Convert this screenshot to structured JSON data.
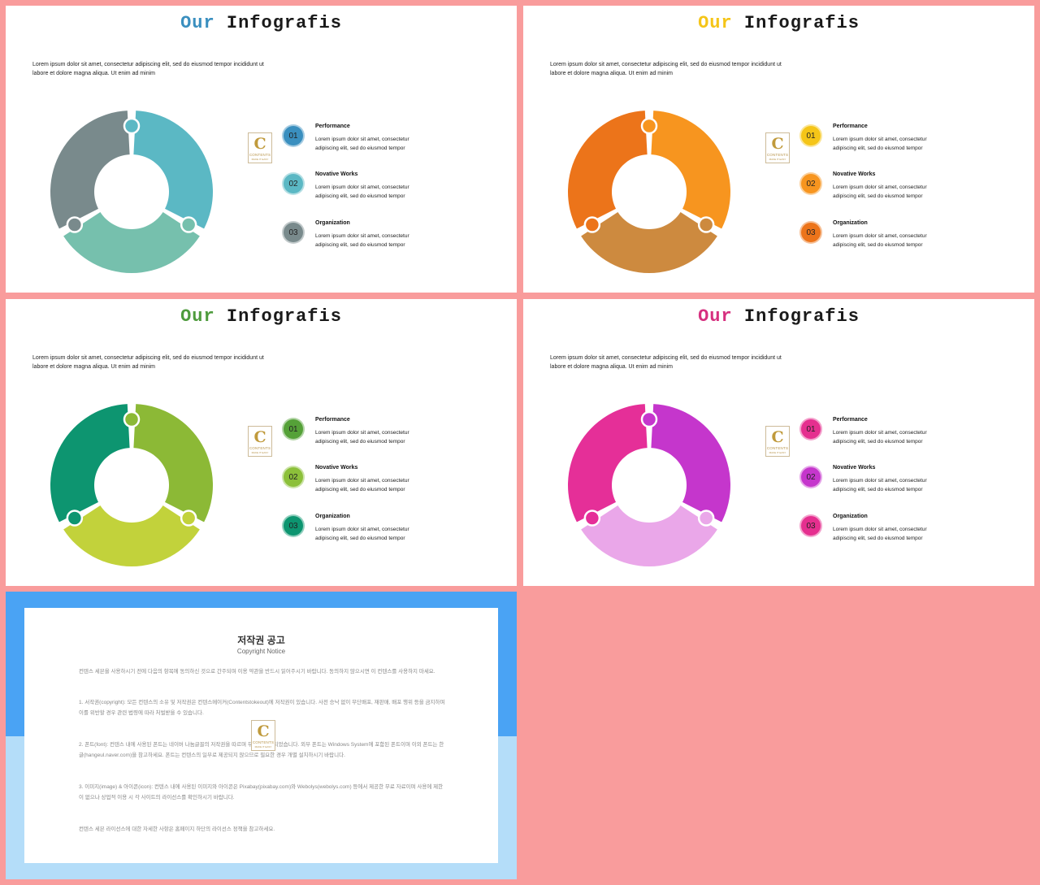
{
  "slides": [
    {
      "title_accent": "Our",
      "title_rest": " Infografis",
      "accent_color": "#3a8fbf",
      "intro": "Lorem ipsum dolor sit amet, consectetur adipiscing elit, sed do eiusmod tempor incididunt ut labore et dolore magna aliqua. Ut enim ad minim",
      "segment_colors": [
        "#5bb8c4",
        "#76c0ad",
        "#798a8c"
      ],
      "items": [
        {
          "num": "01",
          "name": "Performance",
          "desc": "Lorem ipsum dolor sit amet, consectetur adipiscing elit, sed do eiusmod tempor",
          "color": "#3a8fbf"
        },
        {
          "num": "02",
          "name": "Novative Works",
          "desc": "Lorem ipsum dolor sit amet, consectetur adipiscing elit, sed do eiusmod tempor",
          "color": "#5bb8c4"
        },
        {
          "num": "03",
          "name": "Organization",
          "desc": "Lorem ipsum dolor sit amet, consectetur adipiscing elit, sed do eiusmod tempor",
          "color": "#798a8c"
        }
      ]
    },
    {
      "title_accent": "Our",
      "title_rest": " Infografis",
      "accent_color": "#f5c518",
      "intro": "Lorem ipsum dolor sit amet, consectetur adipiscing elit, sed do eiusmod tempor incididunt ut labore et dolore magna aliqua. Ut enim ad minim",
      "segment_colors": [
        "#f7951f",
        "#cd8a3f",
        "#ec741a"
      ],
      "items": [
        {
          "num": "01",
          "name": "Performance",
          "desc": "Lorem ipsum dolor sit amet, consectetur adipiscing elit, sed do eiusmod tempor",
          "color": "#f5c518"
        },
        {
          "num": "02",
          "name": "Novative Works",
          "desc": "Lorem ipsum dolor sit amet, consectetur adipiscing elit, sed do eiusmod tempor",
          "color": "#f7951f"
        },
        {
          "num": "03",
          "name": "Organization",
          "desc": "Lorem ipsum dolor sit amet, consectetur adipiscing elit, sed do eiusmod tempor",
          "color": "#ec741a"
        }
      ]
    },
    {
      "title_accent": "Our",
      "title_rest": " Infografis",
      "accent_color": "#4e9b3d",
      "intro": "Lorem ipsum dolor sit amet, consectetur adipiscing elit, sed do eiusmod tempor incididunt ut labore et dolore magna aliqua. Ut enim ad minim",
      "segment_colors": [
        "#8cb936",
        "#c2d23b",
        "#0d9570"
      ],
      "items": [
        {
          "num": "01",
          "name": "Performance",
          "desc": "Lorem ipsum dolor sit amet, consectetur adipiscing elit, sed do eiusmod tempor",
          "color": "#55a138"
        },
        {
          "num": "02",
          "name": "Novative Works",
          "desc": "Lorem ipsum dolor sit amet, consectetur adipiscing elit, sed do eiusmod tempor",
          "color": "#8cc03a"
        },
        {
          "num": "03",
          "name": "Organization",
          "desc": "Lorem ipsum dolor sit amet, consectetur adipiscing elit, sed do eiusmod tempor",
          "color": "#0d9570"
        }
      ]
    },
    {
      "title_accent": "Our",
      "title_rest": " Infografis",
      "accent_color": "#d6307f",
      "intro": "Lorem ipsum dolor sit amet, consectetur adipiscing elit, sed do eiusmod tempor incididunt ut labore et dolore magna aliqua. Ut enim ad minim",
      "segment_colors": [
        "#c536cc",
        "#eaa7e9",
        "#e52f98"
      ],
      "items": [
        {
          "num": "01",
          "name": "Performance",
          "desc": "Lorem ipsum dolor sit amet, consectetur adipiscing elit, sed do eiusmod tempor",
          "color": "#e52f8f"
        },
        {
          "num": "02",
          "name": "Novative Works",
          "desc": "Lorem ipsum dolor sit amet, consectetur adipiscing elit, sed do eiusmod tempor",
          "color": "#c536cc"
        },
        {
          "num": "03",
          "name": "Organization",
          "desc": "Lorem ipsum dolor sit amet, consectetur adipiscing elit, sed do eiusmod tempor",
          "color": "#e52f8f"
        }
      ]
    }
  ],
  "logo": {
    "letter": "C",
    "text": "CONTENTS",
    "sub": "MAKE IT EASY"
  },
  "copyright": {
    "title": "저작권 공고",
    "subtitle": "Copyright Notice",
    "paragraphs": [
      "컨텐스 세븐을 사용하시기 전에 다음의 항목에 동의하신 것으로 간주되며 이용 약관을 반드시 읽어주시기 바랍니다. 동의하지 않으시면 이 컨텐스를 사용하지 마세요.",
      "1. 서작권(copyright): 모든 컨텐스의 소유 및 저작권은 컨텐스메이커(Contentstokeout)에 저작권이 있습니다. 사전 승낙 없이 무단배포, 재판매, 배포 행위 등을 금지하며 이를 위반할 경우 관련 법령에 따라 처벌받을 수 있습니다.",
      "2. 폰트(font): 컨텐스 내에 사용된 폰트는 네이버 나눔글꼴의 저작권을 따르며 무료로 배포되었습니다. 외부 폰트는 Windows System에 포함된 폰트이며 이외 폰트는 한글(hangeul.naver.com)을 참고하세요. 폰트는 컨텐스의 일부로 제공되지 않으므로 필요한 경우 개별 설치하시기 바랍니다.",
      "3. 이미지(image) & 아이콘(icon): 컨텐스 내에 사용된 이미지와 아이콘은 Pixabay(pixabay.com)와 Webolys(webolys.com) 등에서 제공한 무료 자료이며 사용에 제한이 없으나 상업적 이용 시 각 사이트의 라이선스를 확인하시기 바랍니다.",
      "컨텐스 세븐 라이선스에 대한 자세한 사항은 홈페이지 하단의 라이선스 정책을 참고하세요."
    ]
  }
}
